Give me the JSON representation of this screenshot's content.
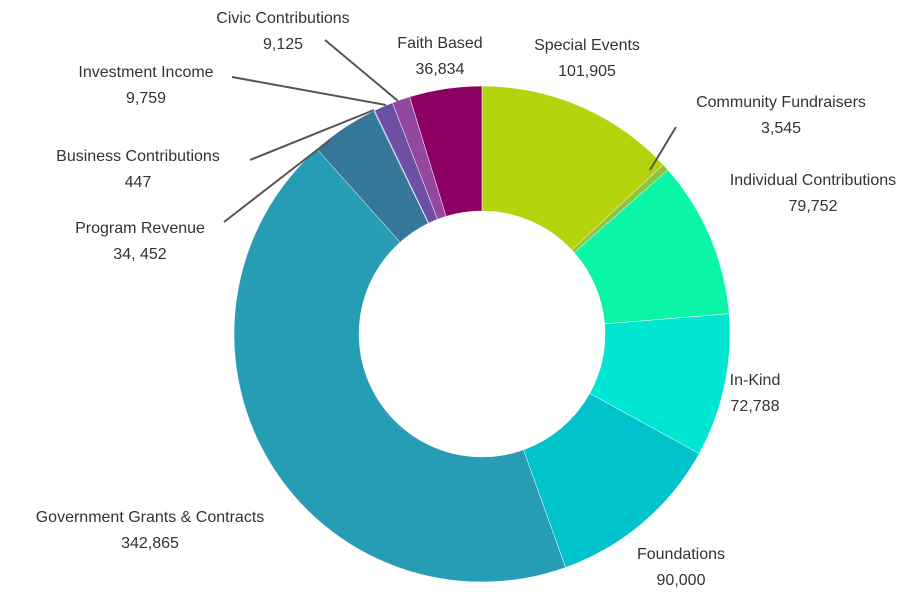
{
  "chart_data": {
    "type": "donut",
    "categories": [
      "Special Events",
      "Community Fundraisers",
      "Individual Contributions",
      "In-Kind",
      "Foundations",
      "Government Grants & Contracts",
      "Program Revenue",
      "Business Contributions",
      "Investment Income",
      "Civic Contributions",
      "Faith Based"
    ],
    "values": [
      101905,
      3545,
      79752,
      72788,
      90000,
      342865,
      34452,
      447,
      9759,
      9125,
      36834
    ],
    "value_labels": [
      "101,905",
      "3,545",
      "79,752",
      "72,788",
      "90,000",
      "342,865",
      "34, 452",
      "447",
      "9,759",
      "9,125",
      "36,834"
    ],
    "colors": [
      "#b5d30c",
      "#8cc63f",
      "#0af5a6",
      "#00e6d2",
      "#00c3cc",
      "#279db5",
      "#36789a",
      "#5a5aa6",
      "#6d4fa5",
      "#94479f",
      "#8c0064"
    ]
  }
}
